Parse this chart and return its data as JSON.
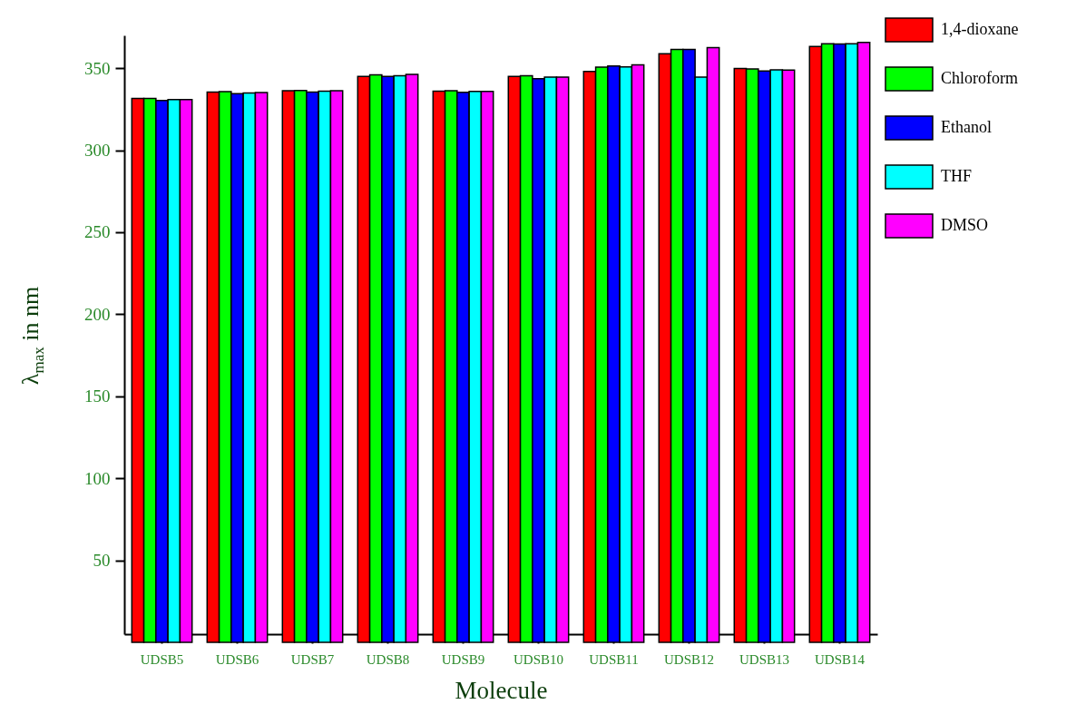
{
  "chart_data": {
    "type": "bar",
    "xlabel": "Molecule",
    "ylabel": "λ$_{max}$ in nm",
    "categories": [
      "UDSB5",
      "UDSB6",
      "UDSB7",
      "UDSB8",
      "UDSB9",
      "UDSB10",
      "UDSB11",
      "UDSB12",
      "UDSB13",
      "UDSB14"
    ],
    "series": [
      {
        "name": "1,4-dioxane",
        "color": "#ff0000",
        "values": [
          331.5,
          335.5,
          336.2,
          345.0,
          336.0,
          345.0,
          348.0,
          358.8,
          349.8,
          363.2
        ]
      },
      {
        "name": "Chloroform",
        "color": "#00ff00",
        "values": [
          331.5,
          335.7,
          336.4,
          346.0,
          336.2,
          345.4,
          350.6,
          361.4,
          349.6,
          364.9
        ]
      },
      {
        "name": "Ethanol",
        "color": "#0000ff",
        "values": [
          330.3,
          334.4,
          335.5,
          345.0,
          335.3,
          343.6,
          351.3,
          361.4,
          348.3,
          364.7
        ]
      },
      {
        "name": "THF",
        "color": "#00ffff",
        "values": [
          330.9,
          334.9,
          336.0,
          345.4,
          335.8,
          344.6,
          350.8,
          344.6,
          349.0,
          364.9
        ]
      },
      {
        "name": "DMSO",
        "color": "#ff00ff",
        "values": [
          330.9,
          335.1,
          336.2,
          346.2,
          335.8,
          344.6,
          352.0,
          362.5,
          348.8,
          365.7
        ]
      }
    ],
    "ylim": [
      5,
      370
    ],
    "yticks": [
      50,
      100,
      150,
      200,
      250,
      300,
      350
    ],
    "grid": false,
    "legend": "top right"
  }
}
